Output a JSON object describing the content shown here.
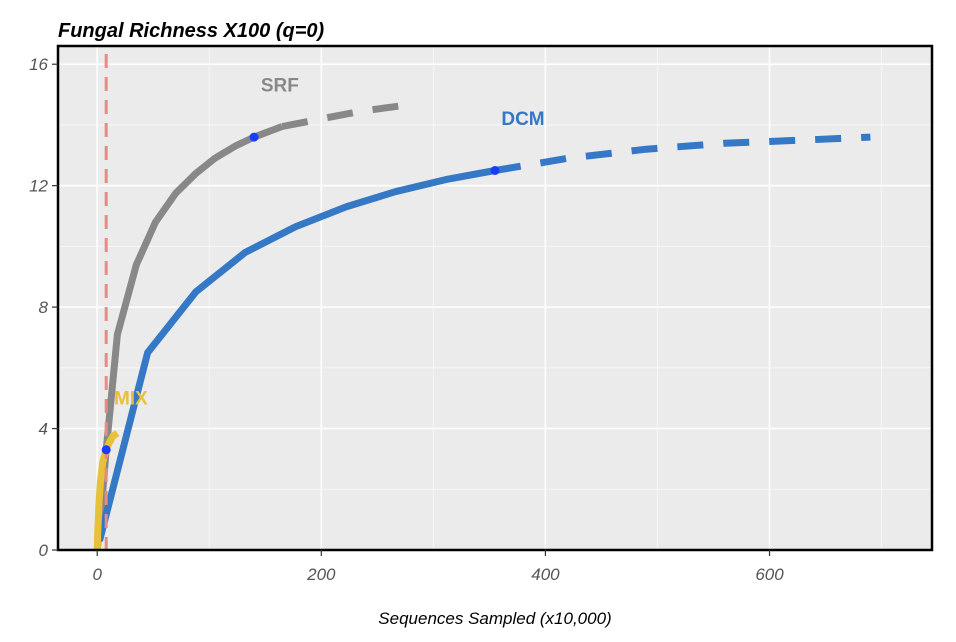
{
  "chart_data": {
    "type": "line",
    "title": "Fungal Richness X100 (q=0)",
    "xlabel": "Sequences Sampled (x10,000)",
    "ylabel": "",
    "xlim": [
      -35,
      745
    ],
    "ylim": [
      0,
      16.6
    ],
    "x_ticks": [
      0,
      200,
      400,
      600
    ],
    "y_ticks": [
      0,
      4,
      8,
      12,
      16
    ],
    "grid": true,
    "background": "#EBEBEB",
    "grid_color": "#FFFFFF",
    "vline": {
      "x": 8,
      "color": "#E88A85",
      "style": "dashed"
    },
    "series": [
      {
        "name": "SRF",
        "color": "#888888",
        "label_at": {
          "x": 163,
          "y": 15.1
        },
        "observed": {
          "x": 140,
          "y": 13.6
        },
        "interpolated": [
          [
            0,
            0
          ],
          [
            4,
            1.5
          ],
          [
            8,
            3.3
          ],
          [
            18,
            7.1
          ],
          [
            35,
            9.4
          ],
          [
            52,
            10.8
          ],
          [
            70,
            11.75
          ],
          [
            88,
            12.4
          ],
          [
            105,
            12.9
          ],
          [
            123,
            13.3
          ],
          [
            140,
            13.6
          ],
          [
            165,
            13.95
          ]
        ],
        "extrapolated": [
          [
            165,
            13.95
          ],
          [
            200,
            14.2
          ],
          [
            235,
            14.45
          ],
          [
            275,
            14.65
          ]
        ]
      },
      {
        "name": "DCM",
        "color": "#3478C6",
        "label_at": {
          "x": 380,
          "y": 14.0
        },
        "observed": {
          "x": 355,
          "y": 12.5
        },
        "interpolated": [
          [
            2,
            0.3
          ],
          [
            45,
            6.5
          ],
          [
            88,
            8.5
          ],
          [
            132,
            9.8
          ],
          [
            177,
            10.65
          ],
          [
            222,
            11.3
          ],
          [
            266,
            11.8
          ],
          [
            311,
            12.2
          ],
          [
            355,
            12.5
          ]
        ],
        "extrapolated": [
          [
            355,
            12.5
          ],
          [
            420,
            12.9
          ],
          [
            490,
            13.2
          ],
          [
            560,
            13.4
          ],
          [
            630,
            13.5
          ],
          [
            690,
            13.6
          ]
        ]
      },
      {
        "name": "MIX",
        "color": "#E8C03A",
        "label_at": {
          "x": 30,
          "y": 4.8
        },
        "observed": {
          "x": 8,
          "y": 3.3
        },
        "interpolated": [
          [
            0,
            0
          ],
          [
            0.5,
            0.6
          ],
          [
            1.5,
            1.5
          ],
          [
            3,
            2.3
          ],
          [
            5,
            2.9
          ],
          [
            8,
            3.3
          ]
        ],
        "extrapolated": [
          [
            8,
            3.3
          ],
          [
            11,
            3.55
          ],
          [
            14,
            3.75
          ],
          [
            18,
            3.85
          ]
        ]
      }
    ]
  }
}
